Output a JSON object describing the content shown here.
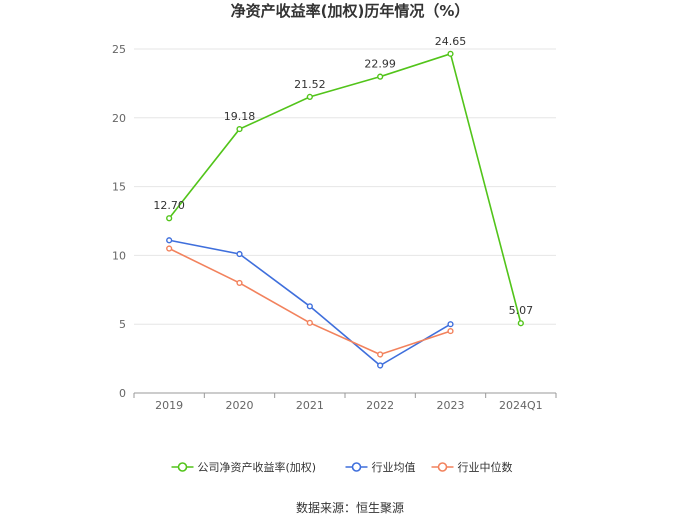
{
  "chart_data": {
    "type": "line",
    "title": "净资产收益率(加权)历年情况（%）",
    "xlabel": "",
    "ylabel": "",
    "categories": [
      "2019",
      "2020",
      "2021",
      "2022",
      "2023",
      "2024Q1"
    ],
    "ylim": [
      0,
      25
    ],
    "yticks": [
      0,
      5,
      10,
      15,
      20,
      25
    ],
    "grid": true,
    "legend_position": "bottom",
    "series": [
      {
        "name": "公司净资产收益率(加权)",
        "color": "#52c41a",
        "values": [
          12.7,
          19.18,
          21.52,
          22.99,
          24.65,
          5.07
        ],
        "labels": [
          "12.70",
          "19.18",
          "21.52",
          "22.99",
          "24.65",
          "5.07"
        ],
        "show_labels": true
      },
      {
        "name": "行业均值",
        "color": "#3f6fdc",
        "values": [
          11.1,
          10.1,
          6.3,
          2.0,
          5.0,
          null
        ],
        "show_labels": false
      },
      {
        "name": "行业中位数",
        "color": "#f2825d",
        "values": [
          10.5,
          8.0,
          5.1,
          2.8,
          4.5,
          null
        ],
        "show_labels": false
      }
    ]
  },
  "source": "数据来源：恒生聚源"
}
